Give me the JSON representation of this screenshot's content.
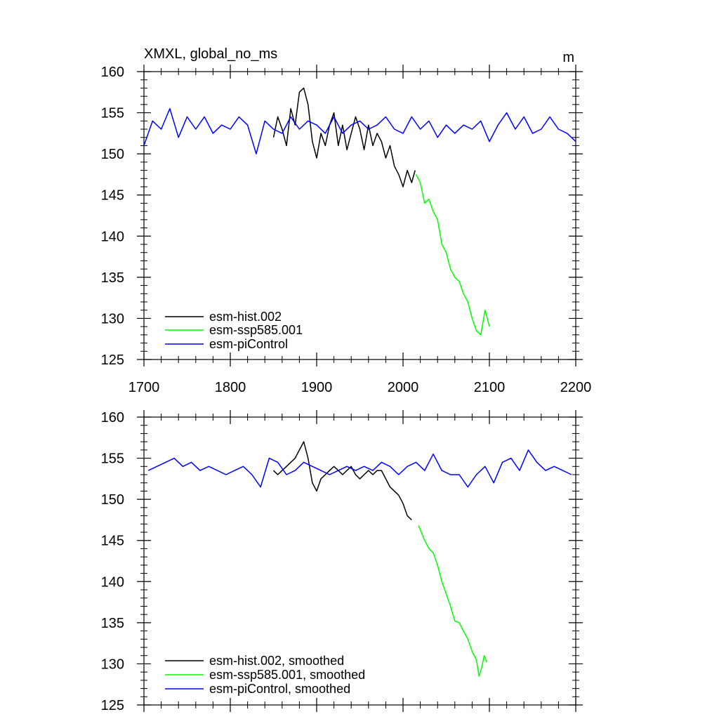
{
  "chart_data": [
    {
      "type": "line",
      "title": "XMXL, global_no_ms",
      "units_label": "m",
      "xlim": [
        1700,
        2200
      ],
      "ylim": [
        125,
        160
      ],
      "x_ticks": [
        1700,
        1800,
        1900,
        2000,
        2100,
        2200
      ],
      "y_ticks": [
        125,
        130,
        135,
        140,
        145,
        150,
        155,
        160
      ],
      "show_x_tick_labels": true,
      "grid": false,
      "legend_position": "bottom-left",
      "series": [
        {
          "name": "esm-hist.002",
          "color": "#000000",
          "x": [
            1850,
            1855,
            1860,
            1865,
            1870,
            1875,
            1880,
            1885,
            1890,
            1895,
            1900,
            1905,
            1910,
            1915,
            1920,
            1925,
            1930,
            1935,
            1940,
            1945,
            1950,
            1955,
            1960,
            1965,
            1970,
            1975,
            1980,
            1985,
            1990,
            1995,
            2000,
            2005,
            2010,
            2014
          ],
          "y": [
            152.0,
            154.5,
            153.0,
            151.0,
            155.5,
            153.5,
            157.5,
            158.0,
            156.0,
            151.5,
            149.5,
            152.5,
            151.0,
            153.5,
            155.0,
            151.0,
            153.5,
            150.5,
            152.5,
            154.5,
            153.0,
            150.5,
            153.5,
            151.0,
            152.5,
            151.5,
            149.5,
            151.0,
            148.5,
            147.5,
            146.0,
            148.0,
            146.5,
            148.0
          ]
        },
        {
          "name": "esm-ssp585.001",
          "color": "#00ff00",
          "x": [
            2015,
            2020,
            2025,
            2030,
            2035,
            2040,
            2045,
            2050,
            2055,
            2060,
            2065,
            2070,
            2075,
            2080,
            2085,
            2090,
            2095,
            2100
          ],
          "y": [
            147.5,
            146.5,
            144.0,
            144.5,
            143.0,
            142.0,
            139.0,
            138.0,
            136.0,
            135.0,
            134.5,
            133.0,
            132.0,
            130.0,
            128.5,
            128.0,
            131.0,
            129.0
          ]
        },
        {
          "name": "esm-piControl",
          "color": "#0000ff",
          "x": [
            1700,
            1710,
            1720,
            1730,
            1740,
            1750,
            1760,
            1770,
            1780,
            1790,
            1800,
            1810,
            1820,
            1830,
            1840,
            1850,
            1860,
            1870,
            1880,
            1890,
            1900,
            1910,
            1920,
            1930,
            1940,
            1950,
            1960,
            1970,
            1980,
            1990,
            2000,
            2010,
            2020,
            2030,
            2040,
            2050,
            2060,
            2070,
            2080,
            2090,
            2100,
            2110,
            2120,
            2130,
            2140,
            2150,
            2160,
            2170,
            2180,
            2190,
            2200
          ],
          "y": [
            151.0,
            154.0,
            153.0,
            155.5,
            152.0,
            154.5,
            153.0,
            154.5,
            152.5,
            153.5,
            153.0,
            154.5,
            153.5,
            150.0,
            154.0,
            153.0,
            152.5,
            154.5,
            153.0,
            154.0,
            153.5,
            152.5,
            154.5,
            152.5,
            153.5,
            154.0,
            153.0,
            153.5,
            154.5,
            153.0,
            152.5,
            154.5,
            153.0,
            154.0,
            152.0,
            153.5,
            152.5,
            153.5,
            153.0,
            154.0,
            151.5,
            153.5,
            155.0,
            153.0,
            154.5,
            152.5,
            153.0,
            154.5,
            153.0,
            152.5,
            151.5
          ]
        }
      ]
    },
    {
      "type": "line",
      "xlim": [
        1700,
        2200
      ],
      "ylim": [
        125,
        160
      ],
      "x_ticks": [
        1700,
        1800,
        1900,
        2000,
        2100,
        2200
      ],
      "y_ticks": [
        125,
        130,
        135,
        140,
        145,
        150,
        155,
        160
      ],
      "show_x_tick_labels": false,
      "grid": false,
      "legend_position": "bottom-left",
      "series": [
        {
          "name": "esm-hist.002, smoothed",
          "color": "#000000",
          "x": [
            1850,
            1855,
            1860,
            1865,
            1870,
            1875,
            1880,
            1885,
            1890,
            1895,
            1900,
            1905,
            1910,
            1915,
            1920,
            1925,
            1930,
            1935,
            1940,
            1945,
            1950,
            1955,
            1960,
            1965,
            1970,
            1975,
            1980,
            1985,
            1990,
            1995,
            2000,
            2005,
            2010
          ],
          "y": [
            153.5,
            153.0,
            153.5,
            154.0,
            154.5,
            155.0,
            156.0,
            157.0,
            155.0,
            152.0,
            151.0,
            152.5,
            153.0,
            153.5,
            154.0,
            153.5,
            153.0,
            153.5,
            154.0,
            153.0,
            152.5,
            153.0,
            153.5,
            153.0,
            153.5,
            153.5,
            152.5,
            151.5,
            151.0,
            150.5,
            149.5,
            148.0,
            147.5
          ]
        },
        {
          "name": "esm-ssp585.001, smoothed",
          "color": "#00ff00",
          "x": [
            2018,
            2025,
            2030,
            2035,
            2040,
            2045,
            2050,
            2055,
            2060,
            2065,
            2070,
            2075,
            2080,
            2085,
            2088,
            2091,
            2094,
            2097
          ],
          "y": [
            146.8,
            145.0,
            144.0,
            143.5,
            142.0,
            140.0,
            138.5,
            137.0,
            135.2,
            135.0,
            134.0,
            133.0,
            131.5,
            130.5,
            128.5,
            129.5,
            131.0,
            130.2
          ]
        },
        {
          "name": "esm-piControl, smoothed",
          "color": "#0000ff",
          "x": [
            1705,
            1715,
            1725,
            1735,
            1745,
            1755,
            1765,
            1775,
            1785,
            1795,
            1805,
            1815,
            1825,
            1835,
            1845,
            1855,
            1865,
            1875,
            1885,
            1895,
            1905,
            1915,
            1925,
            1935,
            1945,
            1955,
            1965,
            1975,
            1985,
            1995,
            2005,
            2015,
            2025,
            2035,
            2045,
            2055,
            2065,
            2075,
            2085,
            2095,
            2105,
            2115,
            2125,
            2135,
            2145,
            2155,
            2165,
            2175,
            2185,
            2195
          ],
          "y": [
            153.5,
            154.0,
            154.5,
            155.0,
            154.0,
            154.5,
            153.5,
            154.0,
            153.5,
            153.0,
            153.5,
            154.0,
            153.0,
            151.5,
            155.0,
            154.5,
            153.0,
            153.5,
            154.5,
            154.0,
            153.5,
            153.0,
            153.5,
            154.0,
            153.5,
            154.0,
            153.5,
            154.5,
            154.0,
            153.0,
            154.0,
            154.5,
            153.5,
            155.5,
            153.5,
            153.0,
            153.0,
            151.5,
            153.0,
            154.0,
            152.0,
            154.5,
            155.0,
            153.5,
            156.0,
            154.5,
            153.5,
            154.0,
            153.5,
            153.0
          ]
        }
      ]
    }
  ]
}
